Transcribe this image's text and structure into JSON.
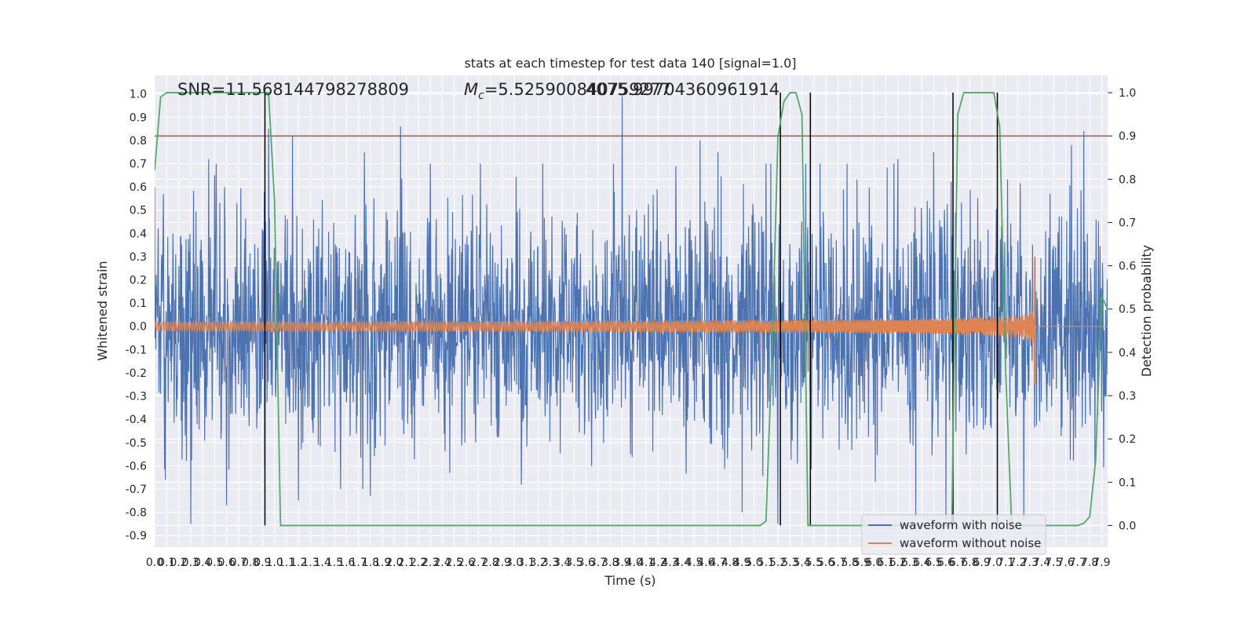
{
  "chart_data": {
    "type": "line",
    "title": "stats at each timestep for test data 140 [signal=1.0]",
    "xlabel": "Time (s)",
    "ylabel_left": "Whitened strain",
    "ylabel_right": "Detection probability",
    "annotations": {
      "snr": "SNR=11.568144798278809",
      "mc_prefix": "M",
      "mc_sub": "c",
      "mc_value": "=5.525900840759277",
      "overlap": "4075.99704360961914"
    },
    "xlim": [
      0.0,
      7.95
    ],
    "xticks": [
      "0.0",
      "0.1",
      "0.2",
      "0.3",
      "0.4",
      "0.5",
      "0.6",
      "0.7",
      "0.8",
      "0.9",
      "1.0",
      "1.1",
      "1.2",
      "1.3",
      "1.4",
      "1.5",
      "1.6",
      "1.7",
      "1.8",
      "1.9",
      "2.0",
      "2.1",
      "2.2",
      "2.3",
      "2.4",
      "2.5",
      "2.6",
      "2.7",
      "2.8",
      "2.9",
      "3.0",
      "3.1",
      "3.2",
      "3.3",
      "3.4",
      "3.5",
      "3.6",
      "3.7",
      "3.8",
      "3.9",
      "4.0",
      "4.1",
      "4.2",
      "4.3",
      "4.4",
      "4.5",
      "4.6",
      "4.7",
      "4.8",
      "4.9",
      "5.0",
      "5.1",
      "5.2",
      "5.3",
      "5.4",
      "5.5",
      "5.6",
      "5.7",
      "5.8",
      "5.9",
      "6.0",
      "6.1",
      "6.2",
      "6.3",
      "6.4",
      "6.5",
      "6.6",
      "6.7",
      "6.8",
      "6.9",
      "7.0",
      "7.1",
      "7.2",
      "7.3",
      "7.4",
      "7.5",
      "7.6",
      "7.7",
      "7.8",
      "7.9"
    ],
    "ylim_left": [
      -0.95,
      1.08
    ],
    "yticks_left": [
      "-0.9",
      "-0.8",
      "-0.7",
      "-0.6",
      "-0.5",
      "-0.4",
      "-0.3",
      "-0.2",
      "-0.1",
      "0.0",
      "0.1",
      "0.2",
      "0.3",
      "0.4",
      "0.5",
      "0.6",
      "0.7",
      "0.8",
      "0.9",
      "1.0"
    ],
    "ylim_right": [
      -0.05,
      1.04
    ],
    "yticks_right": [
      "0.0",
      "0.1",
      "0.2",
      "0.3",
      "0.4",
      "0.5",
      "0.6",
      "0.7",
      "0.8",
      "0.9",
      "1.0"
    ],
    "grid": true,
    "legend_position": "lower-right",
    "series": [
      {
        "name": "waveform with noise",
        "color": "#4c72b0",
        "kind": "noisy strain",
        "core_amplitude": 0.45,
        "peaks": [
          [
            0.0,
            0.6
          ],
          [
            0.45,
            0.72
          ],
          [
            0.5,
            0.65
          ],
          [
            0.95,
            0.85
          ],
          [
            1.15,
            0.82
          ],
          [
            1.75,
            0.75
          ],
          [
            2.05,
            0.86
          ],
          [
            2.3,
            0.7
          ],
          [
            3.9,
            0.99
          ],
          [
            4.55,
            0.8
          ],
          [
            4.7,
            0.75
          ],
          [
            5.1,
            0.7
          ],
          [
            5.55,
            0.7
          ],
          [
            6.2,
            0.72
          ],
          [
            6.5,
            0.75
          ],
          [
            7.65,
            0.78
          ],
          [
            7.75,
            0.84
          ],
          [
            0.3,
            -0.85
          ],
          [
            0.6,
            -0.77
          ],
          [
            1.2,
            -0.75
          ],
          [
            1.55,
            -0.7
          ],
          [
            1.8,
            -0.73
          ],
          [
            4.9,
            -0.8
          ],
          [
            5.2,
            -0.85
          ],
          [
            6.35,
            -0.82
          ],
          [
            6.6,
            -0.83
          ],
          [
            7.25,
            -0.83
          ]
        ]
      },
      {
        "name": "waveform without noise",
        "color": "#dd8452",
        "kind": "chirp",
        "merger_time": 7.35,
        "envelope_start": 0.02,
        "envelope_at_merger": 0.3,
        "merger_peak_negative": -0.25,
        "post_merger_value": 0.0
      },
      {
        "name": "",
        "color": "#55a868",
        "axis": "right",
        "kind": "detection probability",
        "x": [
          0.0,
          0.05,
          0.1,
          0.9,
          0.95,
          1.0,
          1.05,
          1.1,
          5.05,
          5.1,
          5.15,
          5.2,
          5.25,
          5.3,
          5.35,
          5.4,
          5.45,
          5.5,
          5.55,
          6.65,
          6.7,
          6.75,
          6.8,
          6.85,
          7.0,
          7.05,
          7.1,
          7.15,
          7.2,
          7.7,
          7.75,
          7.8,
          7.85,
          7.9,
          7.95
        ],
        "y": [
          0.82,
          0.99,
          1.0,
          1.0,
          1.0,
          0.75,
          0.0,
          0.0,
          0.0,
          0.01,
          0.4,
          0.9,
          0.98,
          1.0,
          1.0,
          0.95,
          0.0,
          0.0,
          0.0,
          0.0,
          0.95,
          1.0,
          1.0,
          1.0,
          1.0,
          0.92,
          0.35,
          0.0,
          0.0,
          0.0,
          0.005,
          0.02,
          0.15,
          0.53,
          0.5
        ]
      }
    ],
    "threshold": {
      "axis": "right",
      "value": 0.9,
      "color": "#c44e52"
    },
    "vertical_lines": {
      "x": [
        0.92,
        5.22,
        5.47,
        6.66,
        7.03
      ],
      "color": "#000000"
    }
  }
}
